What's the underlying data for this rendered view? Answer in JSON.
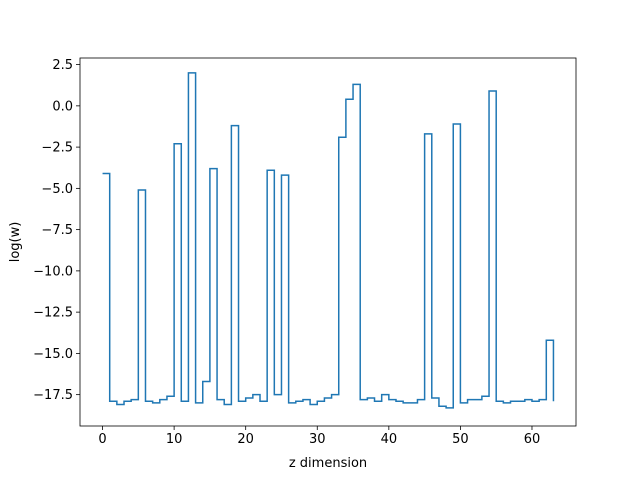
{
  "chart_data": {
    "type": "line",
    "drawstyle": "steps-post",
    "title": "",
    "xlabel": "z dimension",
    "ylabel": "log(w)",
    "xlim": [
      -3.15,
      66.15
    ],
    "ylim": [
      -19.4,
      2.9
    ],
    "xticks": [
      0,
      10,
      20,
      30,
      40,
      50,
      60
    ],
    "xtick_labels": [
      "0",
      "10",
      "20",
      "30",
      "40",
      "50",
      "60"
    ],
    "yticks": [
      2.5,
      0.0,
      -2.5,
      -5.0,
      -7.5,
      -10.0,
      -12.5,
      -15.0,
      -17.5
    ],
    "ytick_labels": [
      "2.5",
      "0.0",
      "−2.5",
      "−5.0",
      "−7.5",
      "−10.0",
      "−12.5",
      "−15.0",
      "−17.5"
    ],
    "grid": false,
    "legend": false,
    "series": [
      {
        "color": "#1f77b4",
        "x": [
          0,
          1,
          2,
          3,
          4,
          5,
          6,
          7,
          8,
          9,
          10,
          11,
          12,
          13,
          14,
          15,
          16,
          17,
          18,
          19,
          20,
          21,
          22,
          23,
          24,
          25,
          26,
          27,
          28,
          29,
          30,
          31,
          32,
          33,
          34,
          35,
          36,
          37,
          38,
          39,
          40,
          41,
          42,
          43,
          44,
          45,
          46,
          47,
          48,
          49,
          50,
          51,
          52,
          53,
          54,
          55,
          56,
          57,
          58,
          59,
          60,
          61,
          62,
          63
        ],
        "y": [
          -4.1,
          -17.9,
          -18.1,
          -17.9,
          -17.8,
          -5.1,
          -17.9,
          -18.0,
          -17.8,
          -17.6,
          -2.3,
          -17.9,
          2.0,
          -18.0,
          -16.7,
          -3.8,
          -17.8,
          -18.1,
          -1.2,
          -17.9,
          -17.7,
          -17.5,
          -17.9,
          -3.9,
          -17.5,
          -4.2,
          -18.0,
          -17.9,
          -17.8,
          -18.1,
          -17.9,
          -17.7,
          -17.5,
          -1.9,
          0.4,
          1.3,
          -17.8,
          -17.7,
          -17.9,
          -17.5,
          -17.8,
          -17.9,
          -18.0,
          -18.0,
          -17.8,
          -1.7,
          -17.7,
          -18.2,
          -18.3,
          -1.1,
          -18.0,
          -17.8,
          -17.8,
          -17.6,
          0.9,
          -17.9,
          -18.0,
          -17.9,
          -17.9,
          -17.8,
          -17.9,
          -17.8,
          -14.2,
          -17.9
        ]
      }
    ]
  }
}
